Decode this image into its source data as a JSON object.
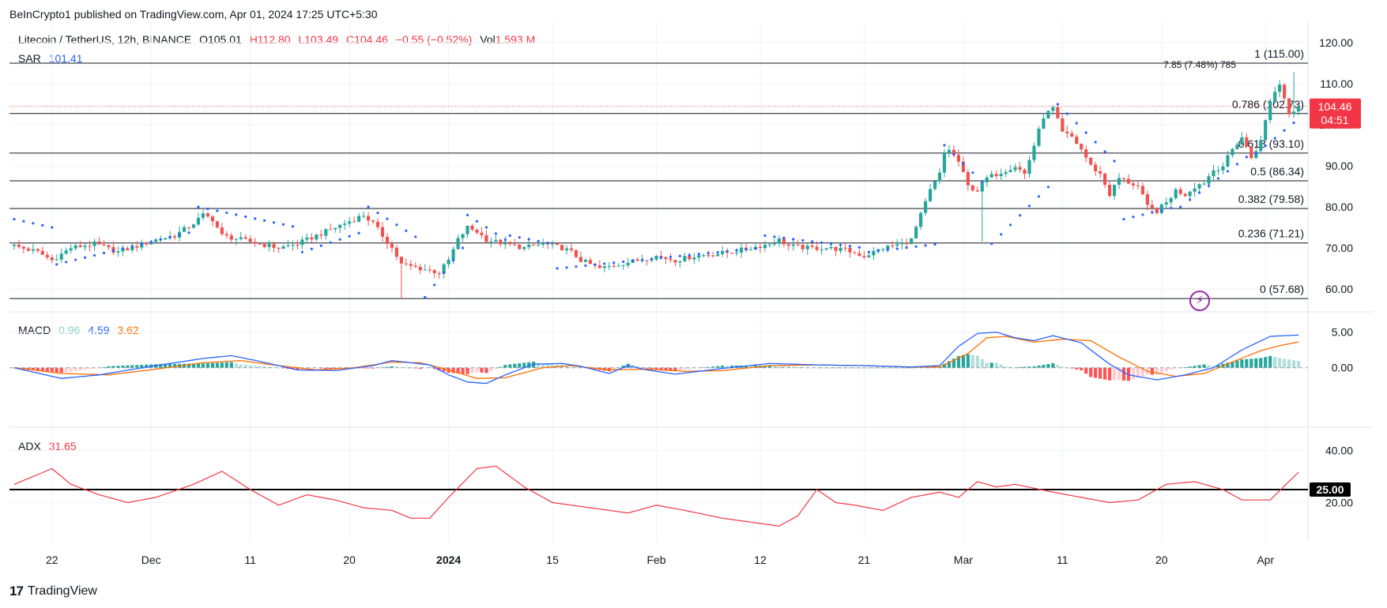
{
  "publisher": "BeInCrypto1 published on TradingView.com, Apr 01, 2024 17:25 UTC+5:30",
  "brand": "TradingView",
  "legend": {
    "symbol": "Litecoin / TetherUS, 12h, BINANCE",
    "open": "O105.01",
    "high": "H112.80",
    "low": "L103.49",
    "close": "C104.46",
    "change": "−0.55 (−0.52%)",
    "vol_label": "Vol",
    "vol_value": "1.593 M",
    "sar_label": "SAR",
    "sar_value": "101.41",
    "macd_label": "MACD",
    "macd_hist": "0.96",
    "macd_line": "4.59",
    "macd_signal": "3.62",
    "adx_label": "ADX",
    "adx_value": "31.65"
  },
  "colors": {
    "up": "#26a69a",
    "down": "#ef5350",
    "sar": "#2962ff",
    "macd": "#2962ff",
    "signal": "#ff6d00",
    "adx": "#f23645",
    "grid": "#f0f3fa"
  },
  "chart_data": [
    {
      "type": "candlestick",
      "title": "Litecoin / TetherUS, 12h, BINANCE",
      "ylim": [
        55,
        125
      ],
      "yticks": [
        60,
        70,
        80,
        90,
        100,
        110,
        120
      ],
      "ytick_labels": [
        "60.00",
        "70.00",
        "80.00",
        "90.00",
        "100.00",
        "110.00",
        "120.00"
      ],
      "xticks": [
        {
          "label": "22",
          "bold": false
        },
        {
          "label": "Dec",
          "bold": false
        },
        {
          "label": "11",
          "bold": false
        },
        {
          "label": "20",
          "bold": false
        },
        {
          "label": "2024",
          "bold": true
        },
        {
          "label": "15",
          "bold": false
        },
        {
          "label": "Feb",
          "bold": false
        },
        {
          "label": "12",
          "bold": false
        },
        {
          "label": "21",
          "bold": false
        },
        {
          "label": "Mar",
          "bold": false
        },
        {
          "label": "11",
          "bold": false
        },
        {
          "label": "20",
          "bold": false
        },
        {
          "label": "Apr",
          "bold": false
        }
      ],
      "last_price": "104.46",
      "countdown": "04:51",
      "fib_levels": [
        {
          "ratio": "1",
          "price": 115.0,
          "label": "1 (115.00)"
        },
        {
          "ratio": "0.786",
          "price": 102.73,
          "label": "0.786 (102.73)"
        },
        {
          "ratio": "0.618",
          "price": 93.1,
          "label": "0.618 (93.10)"
        },
        {
          "ratio": "0.5",
          "price": 86.34,
          "label": "0.5 (86.34)"
        },
        {
          "ratio": "0.382",
          "price": 79.58,
          "label": "0.382 (79.58)"
        },
        {
          "ratio": "0.236",
          "price": 71.21,
          "label": "0.236 (71.21)"
        },
        {
          "ratio": "0",
          "price": 57.68,
          "label": "0 (57.68)"
        }
      ],
      "measure_label": "7.85 (7.48%) 785",
      "price_anchors": [
        [
          0,
          70.5
        ],
        [
          5,
          69
        ],
        [
          8,
          67
        ],
        [
          12,
          70
        ],
        [
          17,
          71
        ],
        [
          22,
          69
        ],
        [
          26,
          70.5
        ],
        [
          30,
          72
        ],
        [
          34,
          73
        ],
        [
          38,
          76
        ],
        [
          40,
          78
        ],
        [
          42,
          77
        ],
        [
          44,
          73
        ],
        [
          48,
          72
        ],
        [
          52,
          71
        ],
        [
          56,
          70
        ],
        [
          60,
          71
        ],
        [
          64,
          73
        ],
        [
          68,
          75
        ],
        [
          72,
          77
        ],
        [
          74,
          78
        ],
        [
          76,
          76
        ],
        [
          78,
          73
        ],
        [
          80,
          70
        ],
        [
          82,
          66
        ],
        [
          86,
          65
        ],
        [
          90,
          64
        ],
        [
          92,
          67
        ],
        [
          94,
          72
        ],
        [
          96,
          75
        ],
        [
          98,
          74
        ],
        [
          100,
          72
        ],
        [
          104,
          71
        ],
        [
          108,
          70
        ],
        [
          112,
          71
        ],
        [
          116,
          70
        ],
        [
          118,
          69
        ],
        [
          120,
          67
        ],
        [
          124,
          65
        ],
        [
          128,
          66
        ],
        [
          132,
          67
        ],
        [
          136,
          68
        ],
        [
          140,
          67
        ],
        [
          144,
          68
        ],
        [
          148,
          68.5
        ],
        [
          152,
          69
        ],
        [
          156,
          70
        ],
        [
          160,
          71
        ],
        [
          162,
          72
        ],
        [
          164,
          70.5
        ],
        [
          168,
          70
        ],
        [
          172,
          70
        ],
        [
          176,
          69.5
        ],
        [
          180,
          68
        ],
        [
          184,
          70
        ],
        [
          188,
          71
        ],
        [
          190,
          72
        ],
        [
          192,
          78
        ],
        [
          194,
          84
        ],
        [
          196,
          88
        ],
        [
          197,
          93
        ],
        [
          198,
          94
        ],
        [
          200,
          91
        ],
        [
          202,
          85
        ],
        [
          204,
          84
        ],
        [
          206,
          87
        ],
        [
          208,
          88
        ],
        [
          210,
          89
        ],
        [
          212,
          90
        ],
        [
          214,
          88
        ],
        [
          216,
          95
        ],
        [
          218,
          102
        ],
        [
          220,
          104
        ],
        [
          222,
          98
        ],
        [
          224,
          97
        ],
        [
          226,
          94
        ],
        [
          228,
          90
        ],
        [
          230,
          88
        ],
        [
          232,
          83
        ],
        [
          234,
          87
        ],
        [
          236,
          86
        ],
        [
          238,
          85
        ],
        [
          240,
          80
        ],
        [
          242,
          79
        ],
        [
          244,
          81
        ],
        [
          246,
          84
        ],
        [
          248,
          83
        ],
        [
          250,
          85
        ],
        [
          252,
          86
        ],
        [
          254,
          89
        ],
        [
          256,
          90
        ],
        [
          258,
          94
        ],
        [
          260,
          97
        ],
        [
          262,
          92
        ],
        [
          264,
          96
        ],
        [
          266,
          106
        ],
        [
          268,
          110
        ],
        [
          270,
          103
        ],
        [
          272,
          104.46
        ]
      ],
      "candle_count": 273,
      "sar_segments": [
        {
          "from": 0,
          "to": 8,
          "side": "above",
          "start": 77,
          "end": 75
        },
        {
          "from": 9,
          "to": 38,
          "side": "below",
          "start": 66,
          "end": 74
        },
        {
          "from": 39,
          "to": 60,
          "side": "above",
          "start": 80,
          "end": 75
        },
        {
          "from": 61,
          "to": 74,
          "side": "below",
          "start": 69,
          "end": 74
        },
        {
          "from": 75,
          "to": 86,
          "side": "above",
          "start": 80,
          "end": 72
        },
        {
          "from": 87,
          "to": 95,
          "side": "below",
          "start": 58,
          "end": 70
        },
        {
          "from": 96,
          "to": 104,
          "side": "above",
          "start": 78,
          "end": 72
        },
        {
          "from": 105,
          "to": 114,
          "side": "above",
          "start": 73,
          "end": 71
        },
        {
          "from": 115,
          "to": 158,
          "side": "below",
          "start": 65,
          "end": 70
        },
        {
          "from": 159,
          "to": 180,
          "side": "above",
          "start": 73,
          "end": 70
        },
        {
          "from": 181,
          "to": 196,
          "side": "below",
          "start": 69,
          "end": 71
        },
        {
          "from": 197,
          "to": 206,
          "side": "above",
          "start": 95,
          "end": 85
        },
        {
          "from": 207,
          "to": 220,
          "side": "below",
          "start": 71,
          "end": 86
        },
        {
          "from": 221,
          "to": 234,
          "side": "above",
          "start": 105,
          "end": 90
        },
        {
          "from": 235,
          "to": 246,
          "side": "below",
          "start": 77,
          "end": 80
        },
        {
          "from": 247,
          "to": 262,
          "side": "below",
          "start": 80,
          "end": 93
        },
        {
          "from": 263,
          "to": 272,
          "side": "below",
          "start": 93,
          "end": 101.41
        }
      ]
    },
    {
      "type": "macd",
      "title": "MACD",
      "ylim": [
        -8,
        7.5
      ],
      "yticks": [
        0,
        5
      ],
      "ytick_labels": [
        "0.00",
        "5.00"
      ],
      "macd_anchors": [
        [
          0,
          0
        ],
        [
          10,
          -1.5
        ],
        [
          18,
          -1
        ],
        [
          30,
          0.3
        ],
        [
          40,
          1.3
        ],
        [
          46,
          1.7
        ],
        [
          52,
          0.9
        ],
        [
          60,
          -0.3
        ],
        [
          68,
          -0.4
        ],
        [
          76,
          0.3
        ],
        [
          80,
          1
        ],
        [
          84,
          0.7
        ],
        [
          88,
          0.4
        ],
        [
          92,
          -1
        ],
        [
          96,
          -2
        ],
        [
          100,
          -2.2
        ],
        [
          104,
          -1
        ],
        [
          110,
          0.5
        ],
        [
          116,
          0.6
        ],
        [
          120,
          0.2
        ],
        [
          126,
          -0.8
        ],
        [
          130,
          0.3
        ],
        [
          134,
          -0.3
        ],
        [
          140,
          -0.9
        ],
        [
          150,
          -0.1
        ],
        [
          160,
          0.6
        ],
        [
          170,
          0.4
        ],
        [
          180,
          0.3
        ],
        [
          190,
          0.1
        ],
        [
          196,
          0.3
        ],
        [
          200,
          3
        ],
        [
          204,
          4.8
        ],
        [
          208,
          5
        ],
        [
          212,
          4.2
        ],
        [
          216,
          3.8
        ],
        [
          220,
          4.5
        ],
        [
          226,
          3.5
        ],
        [
          232,
          0.5
        ],
        [
          236,
          -1
        ],
        [
          242,
          -1.7
        ],
        [
          248,
          -1
        ],
        [
          254,
          0
        ],
        [
          260,
          2.5
        ],
        [
          266,
          4.4
        ],
        [
          272,
          4.59
        ]
      ],
      "signal_anchors": [
        [
          0,
          0
        ],
        [
          10,
          -0.8
        ],
        [
          20,
          -1
        ],
        [
          30,
          -0.2
        ],
        [
          40,
          0.7
        ],
        [
          48,
          1
        ],
        [
          56,
          0.3
        ],
        [
          64,
          -0.3
        ],
        [
          72,
          0
        ],
        [
          80,
          0.8
        ],
        [
          86,
          0.7
        ],
        [
          92,
          -0.3
        ],
        [
          98,
          -1.5
        ],
        [
          104,
          -1.4
        ],
        [
          112,
          0
        ],
        [
          118,
          0.3
        ],
        [
          126,
          -0.3
        ],
        [
          134,
          -0.2
        ],
        [
          142,
          -0.5
        ],
        [
          150,
          -0.4
        ],
        [
          160,
          0.3
        ],
        [
          170,
          0.4
        ],
        [
          180,
          0.3
        ],
        [
          190,
          0.1
        ],
        [
          196,
          0.1
        ],
        [
          202,
          2
        ],
        [
          206,
          4.2
        ],
        [
          210,
          4.4
        ],
        [
          216,
          3.6
        ],
        [
          222,
          4
        ],
        [
          228,
          3.8
        ],
        [
          234,
          1.5
        ],
        [
          240,
          -0.5
        ],
        [
          246,
          -1.2
        ],
        [
          252,
          -0.8
        ],
        [
          258,
          0.8
        ],
        [
          264,
          2.4
        ],
        [
          268,
          3.1
        ],
        [
          272,
          3.62
        ]
      ],
      "histogram_values": "macd - signal",
      "last_histogram": 0.96
    },
    {
      "type": "line",
      "title": "ADX",
      "ylim": [
        5,
        48
      ],
      "yticks": [
        20,
        40
      ],
      "ytick_labels": [
        "20.00",
        "40.00"
      ],
      "threshold": 25,
      "threshold_label": "25.00",
      "adx_anchors": [
        [
          0,
          27
        ],
        [
          4,
          30
        ],
        [
          8,
          33
        ],
        [
          12,
          27
        ],
        [
          18,
          23
        ],
        [
          24,
          20
        ],
        [
          30,
          22
        ],
        [
          38,
          27
        ],
        [
          44,
          32
        ],
        [
          50,
          25
        ],
        [
          56,
          19
        ],
        [
          62,
          23
        ],
        [
          68,
          21
        ],
        [
          74,
          18
        ],
        [
          80,
          17
        ],
        [
          84,
          14
        ],
        [
          88,
          14
        ],
        [
          92,
          22
        ],
        [
          98,
          33
        ],
        [
          102,
          34
        ],
        [
          108,
          26
        ],
        [
          114,
          20
        ],
        [
          122,
          18
        ],
        [
          130,
          16
        ],
        [
          136,
          19
        ],
        [
          142,
          17
        ],
        [
          150,
          14
        ],
        [
          158,
          12
        ],
        [
          162,
          11
        ],
        [
          166,
          15
        ],
        [
          170,
          25
        ],
        [
          174,
          20
        ],
        [
          178,
          19
        ],
        [
          184,
          17
        ],
        [
          190,
          22
        ],
        [
          196,
          24
        ],
        [
          200,
          22
        ],
        [
          204,
          28
        ],
        [
          208,
          26
        ],
        [
          212,
          27
        ],
        [
          220,
          24
        ],
        [
          226,
          22
        ],
        [
          232,
          20
        ],
        [
          238,
          21
        ],
        [
          244,
          27
        ],
        [
          250,
          28
        ],
        [
          256,
          25
        ],
        [
          260,
          21
        ],
        [
          266,
          21
        ],
        [
          272,
          31.65
        ]
      ]
    }
  ]
}
